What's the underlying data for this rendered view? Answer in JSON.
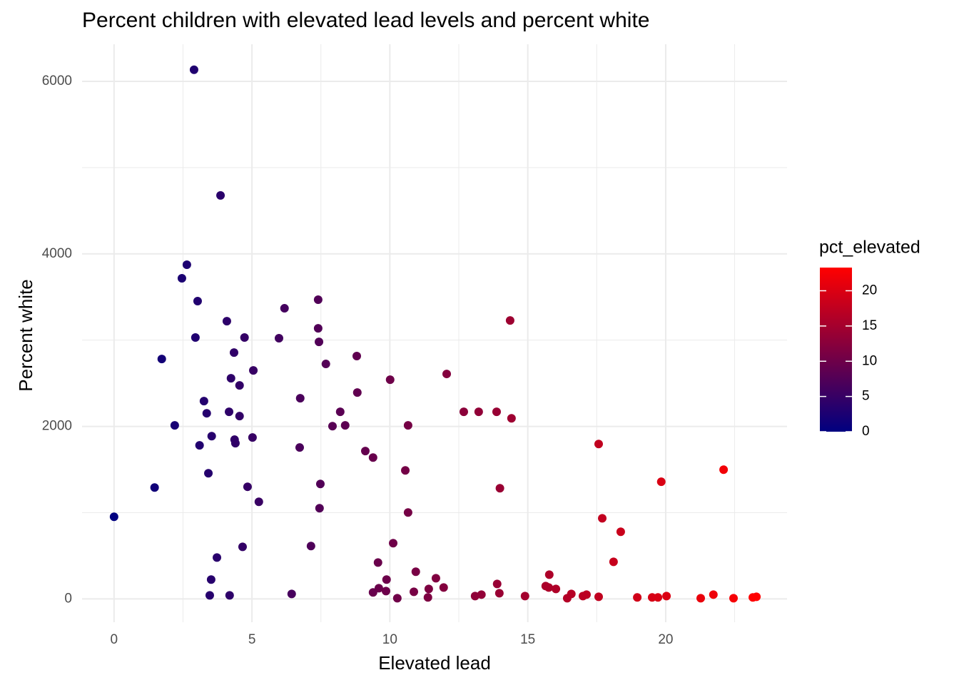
{
  "chart_data": {
    "type": "scatter",
    "title": "Percent children with elevated lead levels and percent white",
    "x_label": "Elevated lead",
    "y_label": "Percent white",
    "x": [
      2.9,
      3.86,
      2.64,
      2.46,
      3.03,
      2.95,
      1.73,
      4.09,
      4.73,
      4.35,
      5.05,
      4.24,
      4.55,
      3.26,
      3.36,
      4.17,
      4.55,
      2.2,
      3.54,
      4.37,
      4.4,
      5.02,
      3.1,
      3.42,
      1.47,
      4.84,
      5.25,
      0,
      3.73,
      4.66,
      3.52,
      3.47,
      4.19,
      6.44,
      6.18,
      5.98,
      7.4,
      7.4,
      7.43,
      7.68,
      8.8,
      6.75,
      8.2,
      8.82,
      8.38,
      7.92,
      6.73,
      9.11,
      9.39,
      7.48,
      7.45,
      7.14,
      10.01,
      10.66,
      12.06,
      10.56,
      10.66,
      10.12,
      9.57,
      10.94,
      11.67,
      9.88,
      11.95,
      11.41,
      9.6,
      9.39,
      9.86,
      10.87,
      10.27,
      11.38,
      14.36,
      12.68,
      13.22,
      13.87,
      14.41,
      13.99,
      13.89,
      13.97,
      13.09,
      13.32,
      14.9,
      15.78,
      15.65,
      15.76,
      16.02,
      16.58,
      16.43,
      17.0,
      17.13,
      17.57,
      17.57,
      17.7,
      18.37,
      18.11,
      19.84,
      22.1,
      18.97,
      19.51,
      19.72,
      20.03,
      21.27,
      21.73,
      22.46,
      23.16,
      23.29
    ],
    "values": [
      6134,
      4677,
      3874,
      3717,
      3452,
      3030,
      2781,
      3220,
      3030,
      2856,
      2649,
      2558,
      2475,
      2293,
      2152,
      2169,
      2119,
      2012,
      1887,
      1846,
      1805,
      1871,
      1780,
      1457,
      1291,
      1300,
      1126,
      952,
      480,
      604,
      224,
      41,
      41,
      58,
      3369,
      3022,
      3469,
      3137,
      2980,
      2724,
      2815,
      2326,
      2169,
      2392,
      2012,
      2003,
      1755,
      1714,
      1639,
      1333,
      1051,
      613,
      2541,
      2012,
      2608,
      1490,
      1002,
      646,
      422,
      315,
      240,
      224,
      132,
      116,
      124,
      75,
      91,
      83,
      8,
      17,
      3228,
      2169,
      2169,
      2169,
      2094,
      1283,
      174,
      66,
      33,
      50,
      33,
      281,
      149,
      132,
      116,
      58,
      8,
      33,
      50,
      25,
      1796,
      935,
      778,
      430,
      1358,
      1498,
      17,
      17,
      17,
      33,
      8,
      50,
      8,
      17,
      25
    ],
    "xlim": [
      -1.16,
      24.4
    ],
    "ylim": [
      -270,
      6430
    ],
    "xticks": [
      0,
      5,
      10,
      15,
      20
    ],
    "yticks": [
      0,
      2000,
      4000,
      6000
    ],
    "xminor": [
      2.5,
      7.5,
      12.5,
      17.5,
      22.5
    ],
    "yminor": [
      1000,
      3000,
      5000
    ],
    "grid": true,
    "legend": {
      "title": "pct_elevated",
      "position": "right",
      "low_color": "#000080",
      "high_color": "#ff0000",
      "lim": [
        0,
        23.29
      ],
      "ticks": [
        0,
        5,
        10,
        15,
        20
      ]
    }
  }
}
